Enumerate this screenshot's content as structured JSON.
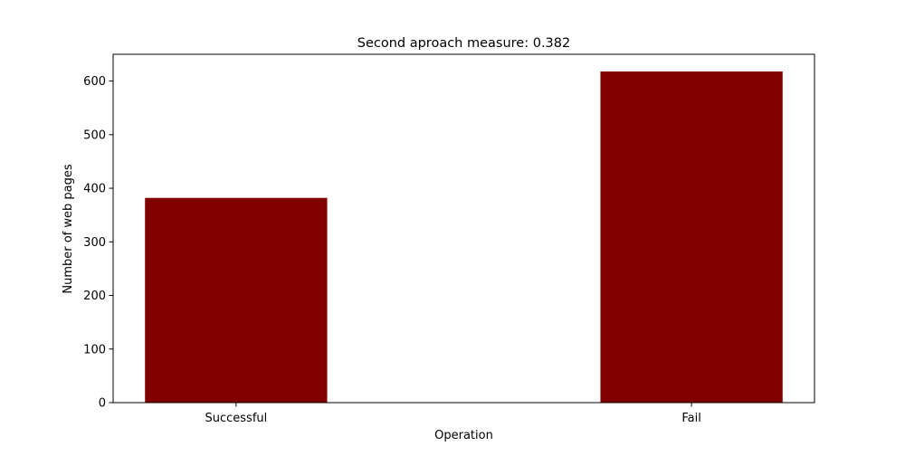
{
  "chart_data": {
    "type": "bar",
    "title": "Second aproach measure: 0.382",
    "xlabel": "Operation",
    "ylabel": "Number of web pages",
    "categories": [
      "Successful",
      "Fail"
    ],
    "values": [
      382,
      618
    ],
    "ylim": [
      0,
      650
    ],
    "yticks": [
      0,
      100,
      200,
      300,
      400,
      500,
      600
    ],
    "bar_color": "#800000",
    "grid": false,
    "legend": "none"
  }
}
